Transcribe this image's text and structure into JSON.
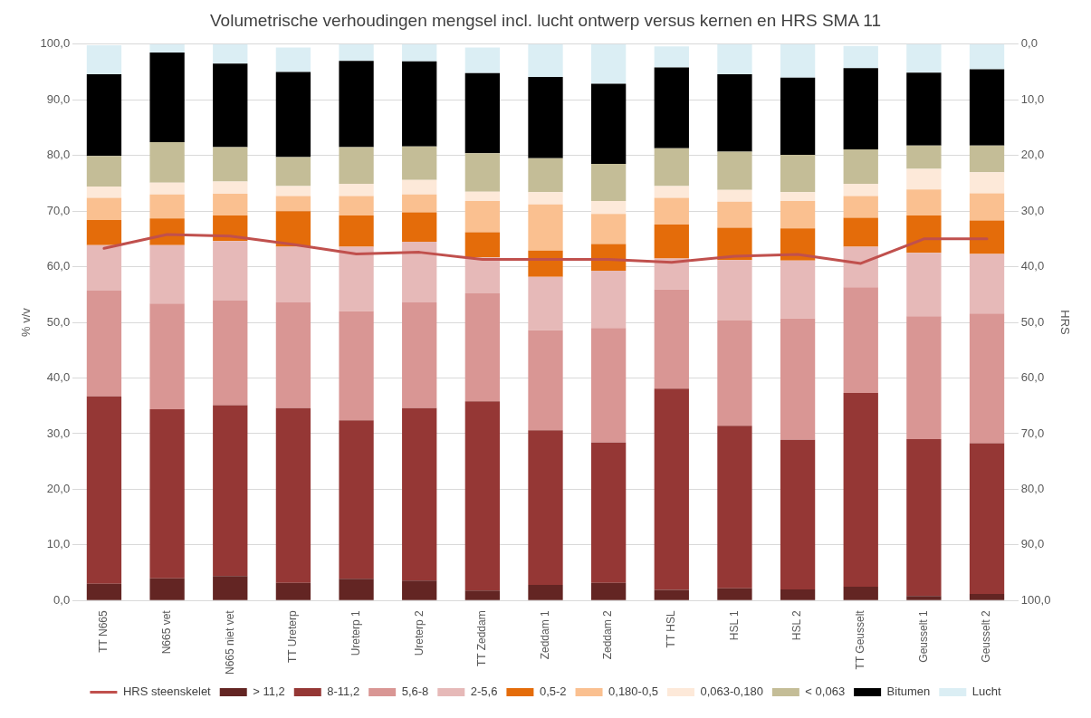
{
  "chart_data": {
    "type": "bar",
    "stacked": true,
    "title": "Volumetrische verhoudingen mengsel incl. lucht ontwerp versus kernen en HRS SMA 11",
    "ylabel": "% v/v",
    "y2label": "HRS",
    "categories": [
      "TT N665",
      "N665 vet",
      "N665 niet vet",
      "TT Ureterp",
      "Ureterp 1",
      "Ureterp 2",
      "TT Zeddam",
      "Zeddam 1",
      "Zeddam 2",
      "TT HSL",
      "HSL 1",
      "HSL 2",
      "TT Geusselt",
      "Geusselt 1",
      "Geusselt 2"
    ],
    "ylim": [
      0,
      100
    ],
    "yticks": [
      {
        "value": 0,
        "label": "0,0"
      },
      {
        "value": 10,
        "label": "10,0"
      },
      {
        "value": 20,
        "label": "20,0"
      },
      {
        "value": 30,
        "label": "30,0"
      },
      {
        "value": 40,
        "label": "40,0"
      },
      {
        "value": 50,
        "label": "50,0"
      },
      {
        "value": 60,
        "label": "60,0"
      },
      {
        "value": 70,
        "label": "70,0"
      },
      {
        "value": 80,
        "label": "80,0"
      },
      {
        "value": 90,
        "label": "90,0"
      },
      {
        "value": 100,
        "label": "100,0"
      }
    ],
    "y2lim": [
      100,
      0
    ],
    "y2ticks": [
      {
        "value": 0,
        "label": "0,0"
      },
      {
        "value": 10,
        "label": "10,0"
      },
      {
        "value": 20,
        "label": "20,0"
      },
      {
        "value": 30,
        "label": "30,0"
      },
      {
        "value": 40,
        "label": "40,0"
      },
      {
        "value": 50,
        "label": "50,0"
      },
      {
        "value": 60,
        "label": "60,0"
      },
      {
        "value": 70,
        "label": "70,0"
      },
      {
        "value": 80,
        "label": "80,0"
      },
      {
        "value": 90,
        "label": "90,0"
      },
      {
        "value": 100,
        "label": "100,0"
      }
    ],
    "grid": "y",
    "legend": "bottom",
    "series": [
      {
        "name": "> 11,2",
        "color": "#632523",
        "values": [
          3.0,
          4.0,
          4.4,
          3.2,
          3.9,
          3.6,
          1.8,
          2.8,
          3.2,
          1.9,
          2.2,
          2.0,
          2.5,
          0.8,
          1.2
        ]
      },
      {
        "name": "8-11,2",
        "color": "#953735",
        "values": [
          33.7,
          30.4,
          30.7,
          31.4,
          28.5,
          31.0,
          34.0,
          27.8,
          25.2,
          36.2,
          29.2,
          26.9,
          34.8,
          28.2,
          27.1
        ]
      },
      {
        "name": "5,6-8",
        "color": "#d99694",
        "values": [
          19.0,
          19.0,
          18.8,
          19.0,
          19.6,
          19.0,
          19.4,
          18.0,
          20.6,
          17.8,
          19.0,
          21.8,
          19.0,
          22.1,
          23.3
        ]
      },
      {
        "name": "2-5,6",
        "color": "#e6b9b8",
        "values": [
          8.2,
          10.5,
          10.7,
          10.0,
          11.6,
          10.9,
          6.5,
          9.6,
          10.3,
          5.6,
          10.8,
          10.4,
          7.3,
          11.4,
          10.7
        ]
      },
      {
        "name": "0,5-2",
        "color": "#e46c0a",
        "values": [
          4.5,
          4.8,
          4.6,
          6.4,
          5.6,
          5.3,
          4.5,
          4.7,
          4.8,
          6.1,
          5.8,
          5.8,
          5.2,
          6.7,
          6.0
        ]
      },
      {
        "name": "0,180-0,5",
        "color": "#fac090",
        "values": [
          4.0,
          4.3,
          3.9,
          2.7,
          3.5,
          3.2,
          5.6,
          8.3,
          5.4,
          4.8,
          4.7,
          4.9,
          3.9,
          4.7,
          4.9
        ]
      },
      {
        "name": "0,063-0,180",
        "color": "#fde9d9",
        "values": [
          2.0,
          2.1,
          2.2,
          1.8,
          2.2,
          2.6,
          1.7,
          2.2,
          2.3,
          2.1,
          2.1,
          1.6,
          2.2,
          3.7,
          3.8
        ]
      },
      {
        "name": "< 0,063",
        "color": "#c4bd97",
        "values": [
          5.5,
          7.3,
          6.2,
          5.2,
          6.6,
          6.0,
          6.9,
          6.1,
          6.7,
          6.8,
          6.9,
          6.7,
          6.2,
          4.2,
          4.8
        ]
      },
      {
        "name": "Bitumen",
        "color": "#000000",
        "values": [
          14.7,
          16.1,
          15.0,
          15.3,
          15.5,
          15.3,
          14.4,
          14.6,
          14.4,
          14.5,
          13.9,
          13.9,
          14.6,
          13.1,
          13.7
        ]
      },
      {
        "name": "Lucht",
        "color": "#dbeef4",
        "values": [
          5.2,
          1.5,
          3.5,
          4.4,
          3.0,
          3.1,
          4.6,
          5.9,
          7.1,
          3.8,
          5.4,
          6.0,
          4.0,
          5.1,
          4.5
        ]
      },
      {
        "name": "HRS steenskelet",
        "type": "line",
        "axis": "y2",
        "color": "#c0504d",
        "marker": "none",
        "values": [
          36.7,
          34.2,
          34.5,
          36.0,
          37.7,
          37.4,
          38.7,
          38.7,
          38.7,
          39.2,
          38.1,
          37.8,
          39.4,
          35.0,
          35.0
        ]
      }
    ]
  }
}
